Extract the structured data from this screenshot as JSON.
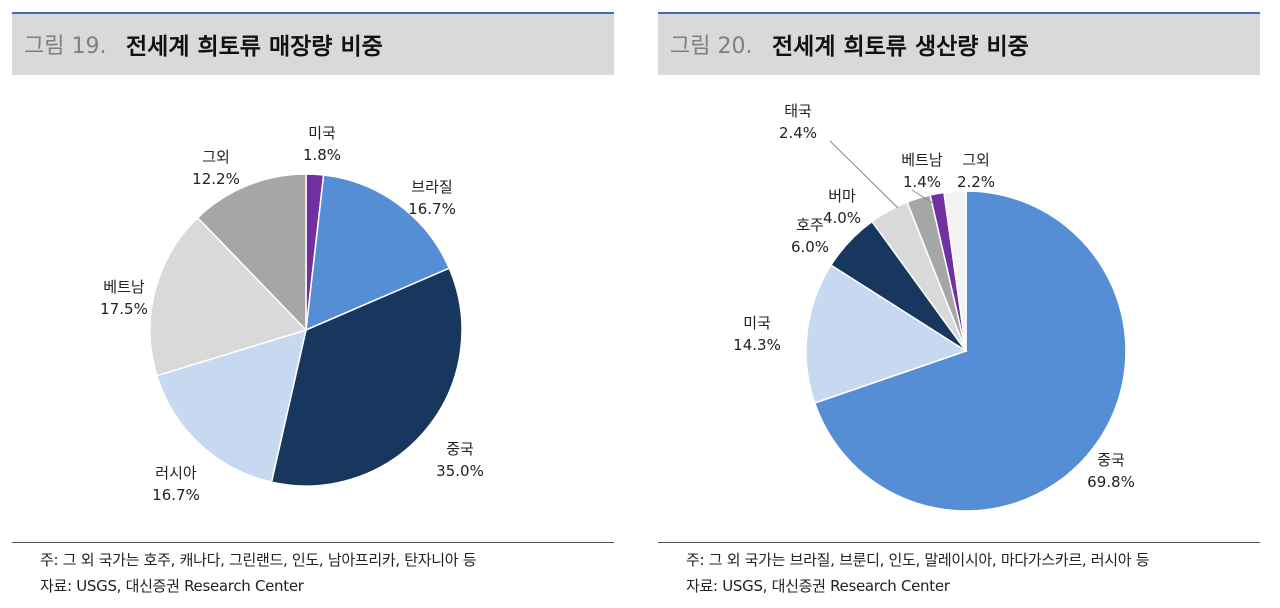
{
  "chart_data": [
    {
      "type": "pie",
      "figure_no": "그림 19.",
      "title": "전세계 희토류 매장량 비중",
      "slices": [
        {
          "label": "미국",
          "value": 1.8,
          "display": "1.8%",
          "color": "#7030a0"
        },
        {
          "label": "브라질",
          "value": 16.7,
          "display": "16.7%",
          "color": "#558ed5"
        },
        {
          "label": "중국",
          "value": 35.0,
          "display": "35.0%",
          "color": "#17375e"
        },
        {
          "label": "러시아",
          "value": 16.7,
          "display": "16.7%",
          "color": "#c6d9f1"
        },
        {
          "label": "베트남",
          "value": 17.5,
          "display": "17.5%",
          "color": "#d9d9d9"
        },
        {
          "label": "그외",
          "value": 12.2,
          "display": "12.2%",
          "color": "#a6a6a6"
        }
      ],
      "note": "주: 그 외 국가는 호주, 캐나다, 그린랜드, 인도, 남아프리카, 탄자니아 등",
      "source": "자료: USGS, 대신증권 Research Center"
    },
    {
      "type": "pie",
      "figure_no": "그림 20.",
      "title": "전세계 희토류 생산량 비중",
      "slices": [
        {
          "label": "중국",
          "value": 69.8,
          "display": "69.8%",
          "color": "#558ed5"
        },
        {
          "label": "미국",
          "value": 14.3,
          "display": "14.3%",
          "color": "#c6d9f1"
        },
        {
          "label": "호주",
          "value": 6.0,
          "display": "6.0%",
          "color": "#17375e"
        },
        {
          "label": "버마",
          "value": 4.0,
          "display": "4.0%",
          "color": "#d9d9d9"
        },
        {
          "label": "태국",
          "value": 2.4,
          "display": "2.4%",
          "color": "#a6a6a6"
        },
        {
          "label": "베트남",
          "value": 1.4,
          "display": "1.4%",
          "color": "#7030a0"
        },
        {
          "label": "그외",
          "value": 2.2,
          "display": "2.2%",
          "color": "#f2f2f2"
        }
      ],
      "note": "주: 그 외 국가는 브라질, 브룬디, 인도, 말레이시아, 마다가스카르, 러시아 등",
      "source": "자료: USGS, 대신증권 Research Center"
    }
  ]
}
